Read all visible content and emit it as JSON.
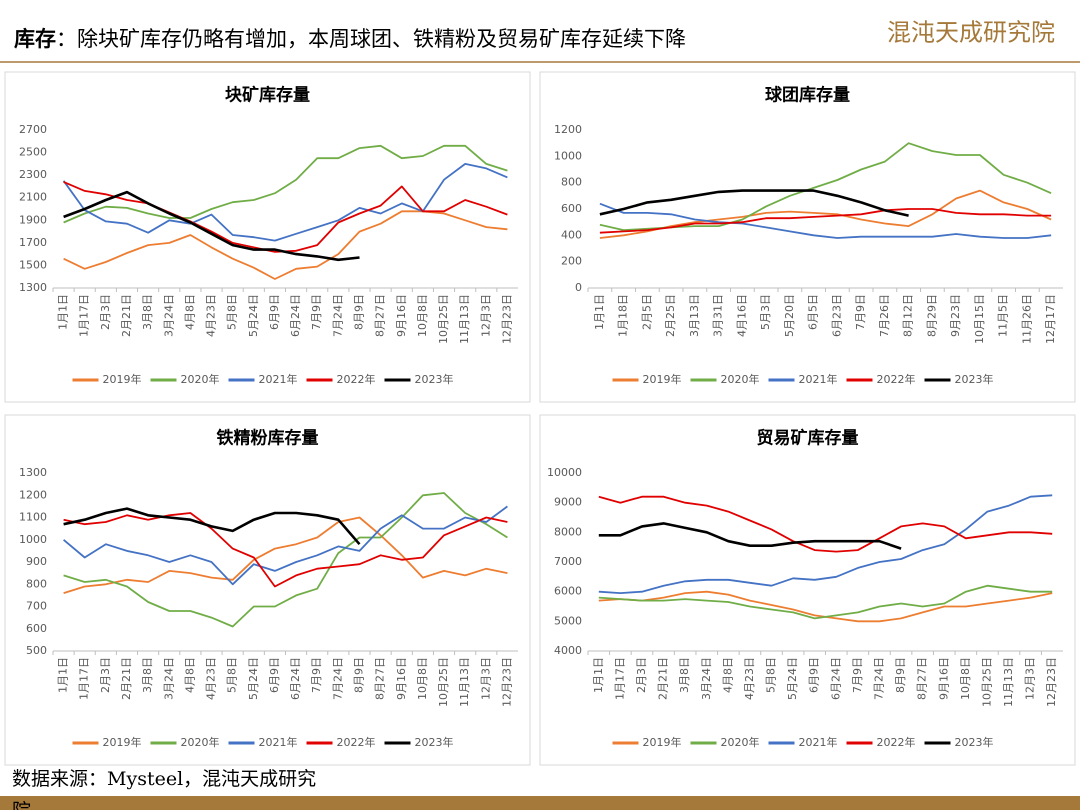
{
  "header": {
    "label": "库存",
    "text": "：除块矿库存仍略有增加，本周球团、铁精粉及贸易矿库存延续下降",
    "logo": "混沌天成研究院"
  },
  "footer": {
    "source": "数据来源：Mysteel，混沌天成研究",
    "cut": "院"
  },
  "chart_data": [
    {
      "type": "line",
      "title": "块矿库存量",
      "categories": [
        "1月1日",
        "1月17日",
        "2月3日",
        "2月21日",
        "3月8日",
        "3月24日",
        "4月8日",
        "4月23日",
        "5月8日",
        "5月24日",
        "6月9日",
        "6月24日",
        "7月9日",
        "7月24日",
        "8月9日",
        "8月27日",
        "9月16日",
        "10月8日",
        "10月25日",
        "11月13日",
        "12月3日",
        "12月23日"
      ],
      "ylim": [
        1300,
        2700
      ],
      "yticks": [
        1300,
        1500,
        1700,
        1900,
        2100,
        2300,
        2500,
        2700
      ],
      "series": [
        {
          "name": "2019年",
          "color": "#ed7d31",
          "values": [
            1560,
            1470,
            1530,
            1610,
            1680,
            1700,
            1770,
            1660,
            1560,
            1480,
            1380,
            1470,
            1490,
            1600,
            1800,
            1870,
            1980,
            1980,
            1960,
            1900,
            1840,
            1820
          ]
        },
        {
          "name": "2020年",
          "color": "#70ad47",
          "values": [
            1880,
            1960,
            2020,
            2010,
            1960,
            1920,
            1920,
            2000,
            2060,
            2080,
            2140,
            2260,
            2450,
            2450,
            2540,
            2560,
            2450,
            2470,
            2560,
            2560,
            2400,
            2340
          ]
        },
        {
          "name": "2021年",
          "color": "#4472c4",
          "values": [
            2250,
            1990,
            1890,
            1870,
            1790,
            1900,
            1870,
            1950,
            1770,
            1750,
            1720,
            1780,
            1840,
            1900,
            2010,
            1960,
            2050,
            1980,
            2260,
            2400,
            2360,
            2280
          ]
        },
        {
          "name": "2022年",
          "color": "#e00000",
          "values": [
            2240,
            2160,
            2130,
            2080,
            2050,
            1970,
            1890,
            1800,
            1700,
            1660,
            1620,
            1630,
            1680,
            1880,
            1960,
            2030,
            2200,
            1980,
            1980,
            2080,
            2020,
            1950
          ]
        },
        {
          "name": "2023年",
          "color": "#000000",
          "values": [
            1930,
            2000,
            2080,
            2150,
            2050,
            1960,
            1880,
            1780,
            1680,
            1640,
            1640,
            1600,
            1580,
            1550,
            1570,
            null,
            null,
            null,
            null,
            null,
            null,
            null
          ]
        }
      ]
    },
    {
      "type": "line",
      "title": "球团库存量",
      "categories": [
        "1月1日",
        "1月18日",
        "2月5日",
        "2月25日",
        "3月13日",
        "3月31日",
        "4月16日",
        "5月3日",
        "5月20日",
        "6月5日",
        "6月23日",
        "7月9日",
        "7月26日",
        "8月12日",
        "8月29日",
        "9月23日",
        "10月15日",
        "11月5日",
        "11月26日",
        "12月17日"
      ],
      "ylim": [
        0,
        1200
      ],
      "yticks": [
        0,
        200,
        400,
        600,
        800,
        1000,
        1200
      ],
      "series": [
        {
          "name": "2019年",
          "color": "#ed7d31",
          "values": [
            380,
            400,
            430,
            470,
            500,
            520,
            540,
            570,
            580,
            570,
            560,
            520,
            490,
            470,
            560,
            680,
            740,
            650,
            600,
            520
          ]
        },
        {
          "name": "2020年",
          "color": "#70ad47",
          "values": [
            480,
            440,
            450,
            460,
            470,
            470,
            520,
            620,
            700,
            760,
            820,
            900,
            960,
            1100,
            1040,
            1010,
            1010,
            860,
            800,
            720
          ]
        },
        {
          "name": "2021年",
          "color": "#4472c4",
          "values": [
            640,
            570,
            570,
            560,
            520,
            500,
            490,
            460,
            430,
            400,
            380,
            390,
            390,
            390,
            390,
            410,
            390,
            380,
            380,
            400
          ]
        },
        {
          "name": "2022年",
          "color": "#e00000",
          "values": [
            420,
            430,
            440,
            460,
            490,
            490,
            500,
            530,
            530,
            540,
            550,
            560,
            590,
            600,
            600,
            570,
            560,
            560,
            550,
            550
          ]
        },
        {
          "name": "2023年",
          "color": "#000000",
          "values": [
            560,
            600,
            650,
            670,
            700,
            730,
            740,
            740,
            740,
            740,
            700,
            650,
            590,
            550,
            null,
            null,
            null,
            null,
            null,
            null
          ]
        }
      ]
    },
    {
      "type": "line",
      "title": "铁精粉库存量",
      "categories": [
        "1月1日",
        "1月17日",
        "2月3日",
        "2月21日",
        "3月8日",
        "3月24日",
        "4月8日",
        "4月23日",
        "5月8日",
        "5月24日",
        "6月9日",
        "6月24日",
        "7月9日",
        "7月24日",
        "8月9日",
        "8月27日",
        "9月16日",
        "10月8日",
        "10月25日",
        "11月13日",
        "12月3日",
        "12月23日"
      ],
      "ylim": [
        500,
        1300
      ],
      "yticks": [
        500,
        600,
        700,
        800,
        900,
        1000,
        1100,
        1200,
        1300
      ],
      "series": [
        {
          "name": "2019年",
          "color": "#ed7d31",
          "values": [
            760,
            790,
            800,
            820,
            810,
            860,
            850,
            830,
            820,
            910,
            960,
            980,
            1010,
            1080,
            1100,
            1020,
            930,
            830,
            860,
            840,
            870,
            850
          ]
        },
        {
          "name": "2020年",
          "color": "#70ad47",
          "values": [
            840,
            810,
            820,
            790,
            720,
            680,
            680,
            650,
            610,
            700,
            700,
            750,
            780,
            940,
            1010,
            1010,
            1100,
            1200,
            1210,
            1120,
            1070,
            1010
          ]
        },
        {
          "name": "2021年",
          "color": "#4472c4",
          "values": [
            1000,
            920,
            980,
            950,
            930,
            900,
            930,
            900,
            800,
            890,
            860,
            900,
            930,
            970,
            950,
            1050,
            1110,
            1050,
            1050,
            1100,
            1080,
            1150
          ]
        },
        {
          "name": "2022年",
          "color": "#e00000",
          "values": [
            1090,
            1070,
            1080,
            1110,
            1090,
            1110,
            1120,
            1050,
            960,
            920,
            790,
            840,
            870,
            880,
            890,
            930,
            910,
            920,
            1020,
            1060,
            1100,
            1080
          ]
        },
        {
          "name": "2023年",
          "color": "#000000",
          "values": [
            1070,
            1090,
            1120,
            1140,
            1110,
            1100,
            1090,
            1060,
            1040,
            1090,
            1120,
            1120,
            1110,
            1090,
            980,
            null,
            null,
            null,
            null,
            null,
            null,
            null
          ]
        }
      ]
    },
    {
      "type": "line",
      "title": "贸易矿库存量",
      "categories": [
        "1月1日",
        "1月17日",
        "2月3日",
        "2月21日",
        "3月8日",
        "3月24日",
        "4月8日",
        "4月23日",
        "5月8日",
        "5月24日",
        "6月9日",
        "6月24日",
        "7月9日",
        "7月24日",
        "8月9日",
        "8月27日",
        "9月16日",
        "10月8日",
        "10月25日",
        "11月13日",
        "12月3日",
        "12月23日"
      ],
      "ylim": [
        4000,
        10000
      ],
      "yticks": [
        4000,
        5000,
        6000,
        7000,
        8000,
        9000,
        10000
      ],
      "series": [
        {
          "name": "2019年",
          "color": "#ed7d31",
          "values": [
            5700,
            5750,
            5700,
            5800,
            5950,
            6000,
            5900,
            5700,
            5550,
            5400,
            5200,
            5100,
            5000,
            5000,
            5100,
            5300,
            5500,
            5500,
            5600,
            5700,
            5800,
            5950
          ]
        },
        {
          "name": "2020年",
          "color": "#70ad47",
          "values": [
            5800,
            5750,
            5700,
            5700,
            5750,
            5700,
            5650,
            5500,
            5400,
            5300,
            5100,
            5200,
            5300,
            5500,
            5600,
            5500,
            5600,
            6000,
            6200,
            6100,
            6000,
            6000
          ]
        },
        {
          "name": "2021年",
          "color": "#4472c4",
          "values": [
            6000,
            5950,
            6000,
            6200,
            6350,
            6400,
            6400,
            6300,
            6200,
            6450,
            6400,
            6500,
            6800,
            7000,
            7100,
            7400,
            7600,
            8100,
            8700,
            8900,
            9200,
            9250
          ]
        },
        {
          "name": "2022年",
          "color": "#e00000",
          "values": [
            9200,
            9000,
            9200,
            9200,
            9000,
            8900,
            8700,
            8400,
            8100,
            7700,
            7400,
            7350,
            7400,
            7800,
            8200,
            8300,
            8200,
            7800,
            7900,
            8000,
            8000,
            7950
          ]
        },
        {
          "name": "2023年",
          "color": "#000000",
          "values": [
            7900,
            7900,
            8200,
            8300,
            8150,
            8000,
            7700,
            7550,
            7550,
            7650,
            7700,
            7700,
            7700,
            7700,
            7450,
            null,
            null,
            null,
            null,
            null,
            null,
            null
          ]
        }
      ]
    }
  ]
}
